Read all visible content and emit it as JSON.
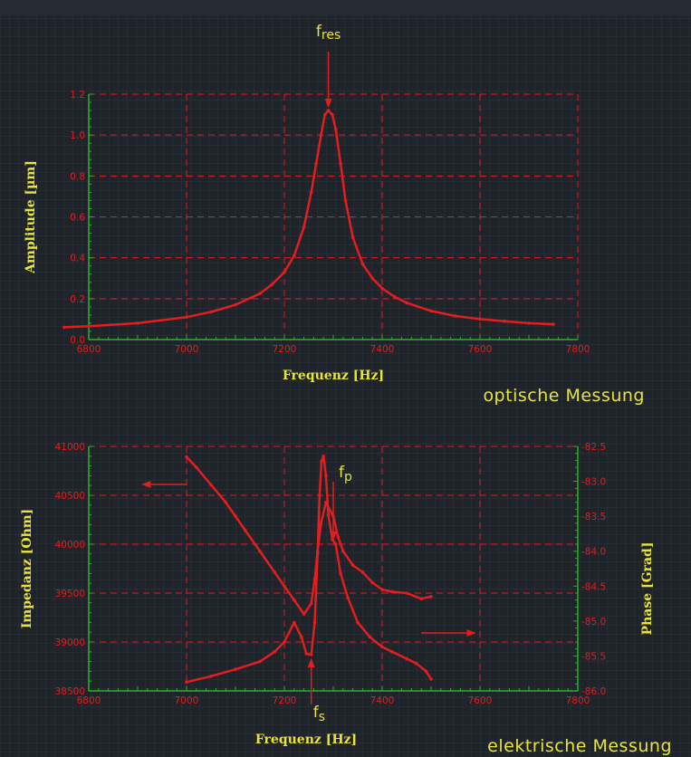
{
  "chart_data": [
    {
      "type": "line",
      "caption": "optische Messung",
      "xlabel": "Frequenz [Hz]",
      "ylabel": "Amplitude [µm]",
      "xlim": [
        6800,
        7800
      ],
      "ylim": [
        0,
        1.2
      ],
      "x_ticks": [
        "6800",
        "7000",
        "7200",
        "7400",
        "7600",
        "7800"
      ],
      "y_ticks": [
        "0.0",
        "0.2",
        "0.4",
        "0.6",
        "0.8",
        "1.0",
        "1.2"
      ],
      "grid": true,
      "annotations": [
        {
          "text": "f",
          "sub": "res",
          "x": 7290
        }
      ],
      "series": [
        {
          "x": [
            6750,
            6800,
            6900,
            7000,
            7050,
            7100,
            7150,
            7175,
            7200,
            7220,
            7240,
            7255,
            7265,
            7275,
            7283,
            7290,
            7298,
            7305,
            7315,
            7325,
            7340,
            7360,
            7380,
            7400,
            7425,
            7450,
            7500,
            7550,
            7600,
            7650,
            7700,
            7750
          ],
          "y": [
            0.06,
            0.065,
            0.08,
            0.11,
            0.135,
            0.17,
            0.225,
            0.27,
            0.33,
            0.41,
            0.55,
            0.72,
            0.86,
            1.0,
            1.1,
            1.12,
            1.1,
            1.03,
            0.86,
            0.68,
            0.5,
            0.37,
            0.3,
            0.25,
            0.21,
            0.18,
            0.14,
            0.115,
            0.1,
            0.09,
            0.08,
            0.075
          ]
        }
      ]
    },
    {
      "type": "line",
      "caption": "elektrische Messung",
      "xlabel": "Frequenz [Hz]",
      "ylabel": "Impedanz [Ohm]",
      "y2label": "Phase [Grad]",
      "xlim": [
        6800,
        7800
      ],
      "ylim": [
        38500,
        41000
      ],
      "y2lim": [
        -86.0,
        -82.5
      ],
      "x_ticks": [
        "6800",
        "7000",
        "7200",
        "7400",
        "7600",
        "7800"
      ],
      "y_ticks": [
        "38500",
        "39000",
        "39500",
        "40000",
        "40500",
        "41000"
      ],
      "y2_ticks": [
        "-86.0",
        "-85.5",
        "-85.0",
        "-84.5",
        "-84.0",
        "-83.5",
        "-83.0",
        "-82.5"
      ],
      "grid": true,
      "annotations": [
        {
          "text": "f",
          "sub": "p",
          "x": 7300
        },
        {
          "text": "f",
          "sub": "s",
          "x": 7255
        }
      ],
      "series": [
        {
          "axis": "left",
          "x": [
            7000,
            7050,
            7100,
            7150,
            7180,
            7200,
            7220,
            7235,
            7245,
            7255,
            7262,
            7268,
            7272,
            7276,
            7280,
            7285,
            7290,
            7298,
            7305,
            7315,
            7330,
            7350,
            7375,
            7400,
            7420,
            7450,
            7470,
            7490,
            7500
          ],
          "y": [
            38590,
            38650,
            38720,
            38800,
            38900,
            39000,
            39200,
            39050,
            38880,
            38870,
            39200,
            39900,
            40500,
            40850,
            40900,
            40700,
            40300,
            40050,
            40000,
            39700,
            39450,
            39200,
            39050,
            38950,
            38900,
            38830,
            38780,
            38700,
            38620
          ]
        },
        {
          "axis": "right",
          "x": [
            7000,
            7020,
            7050,
            7080,
            7100,
            7120,
            7150,
            7180,
            7200,
            7220,
            7240,
            7255,
            7262,
            7268,
            7275,
            7285,
            7300,
            7310,
            7320,
            7340,
            7360,
            7380,
            7400,
            7420,
            7450,
            7480,
            7500
          ],
          "y": [
            -82.65,
            -82.8,
            -83.05,
            -83.3,
            -83.5,
            -83.7,
            -84.0,
            -84.3,
            -84.5,
            -84.7,
            -84.9,
            -84.75,
            -84.4,
            -84.0,
            -83.6,
            -83.3,
            -83.5,
            -83.8,
            -84.0,
            -84.2,
            -84.3,
            -84.45,
            -84.55,
            -84.58,
            -84.6,
            -84.68,
            -84.65
          ]
        }
      ]
    }
  ]
}
